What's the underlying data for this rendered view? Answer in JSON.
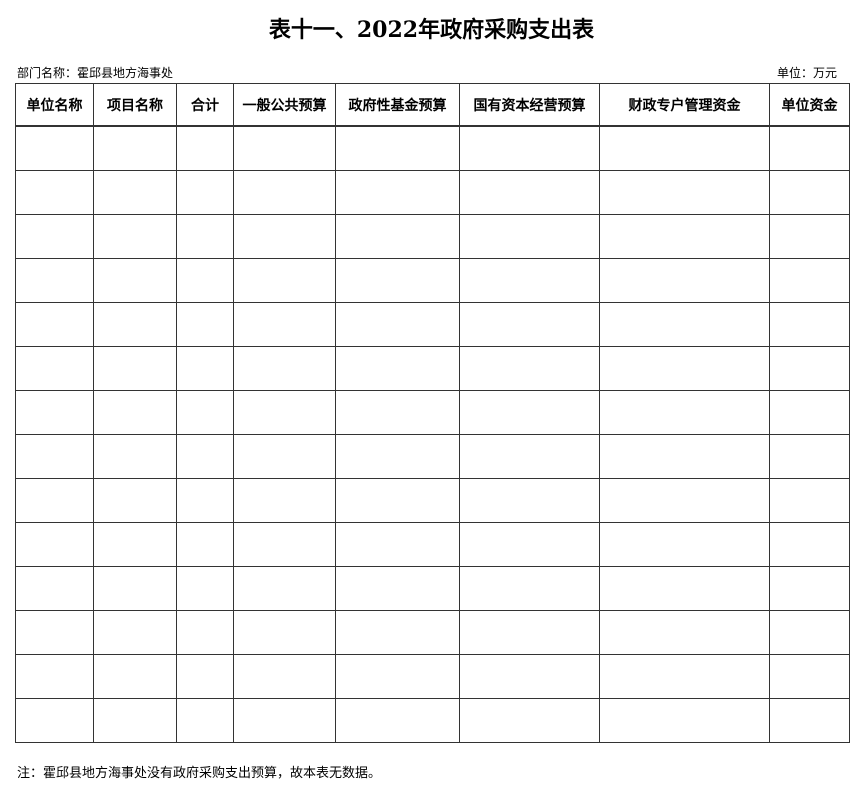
{
  "title": "表十一、2022年政府采购支出表",
  "department_label": "部门名称：霍邱县地方海事处",
  "unit_label": "单位：万元",
  "table": {
    "columns": [
      "单位名称",
      "项目名称",
      "合计",
      "一般公共预算",
      "政府性基金预算",
      "国有资本经营预算",
      "财政专户管理资金",
      "单位资金"
    ],
    "row_count": 14
  },
  "note": "注：霍邱县地方海事处没有政府采购支出预算，故本表无数据。"
}
